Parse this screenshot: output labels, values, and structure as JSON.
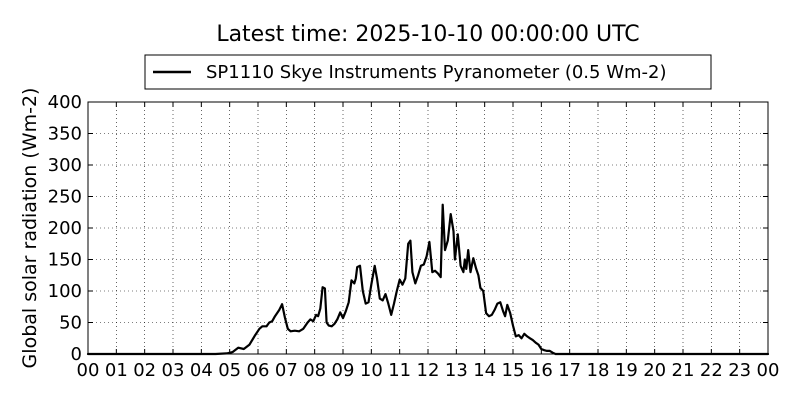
{
  "chart_data": {
    "type": "line",
    "title": "Latest time: 2025-10-10 00:00:00 UTC",
    "ylabel": "Global solar radiation (Wm-2)",
    "xlabel": "",
    "xlim": [
      0,
      24
    ],
    "ylim": [
      0,
      400
    ],
    "grid": true,
    "legend_position": "top-center",
    "x_tick_labels": [
      "00",
      "01",
      "02",
      "03",
      "04",
      "05",
      "06",
      "07",
      "08",
      "09",
      "10",
      "11",
      "12",
      "13",
      "14",
      "15",
      "16",
      "17",
      "18",
      "19",
      "20",
      "21",
      "22",
      "23",
      "00"
    ],
    "y_tick_labels": [
      "0",
      "50",
      "100",
      "150",
      "200",
      "250",
      "300",
      "350",
      "400"
    ],
    "y_ticks": [
      0,
      50,
      100,
      150,
      200,
      250,
      300,
      350,
      400
    ],
    "series": [
      {
        "name": "SP1110 Skye Instruments Pyranometer (0.5 Wm-2)",
        "color": "#000000",
        "x": [
          0,
          4.5,
          4.9,
          5.1,
          5.3,
          5.5,
          5.7,
          5.9,
          6.05,
          6.15,
          6.3,
          6.4,
          6.5,
          6.6,
          6.75,
          6.85,
          6.95,
          7.05,
          7.15,
          7.3,
          7.45,
          7.6,
          7.75,
          7.85,
          7.95,
          8.05,
          8.12,
          8.2,
          8.28,
          8.36,
          8.42,
          8.5,
          8.6,
          8.7,
          8.8,
          8.9,
          9.0,
          9.1,
          9.2,
          9.3,
          9.4,
          9.45,
          9.5,
          9.6,
          9.7,
          9.8,
          9.9,
          10.0,
          10.12,
          10.2,
          10.3,
          10.4,
          10.5,
          10.6,
          10.7,
          10.8,
          10.9,
          11.0,
          11.1,
          11.2,
          11.3,
          11.38,
          11.45,
          11.55,
          11.65,
          11.75,
          11.85,
          11.95,
          12.05,
          12.15,
          12.25,
          12.35,
          12.45,
          12.52,
          12.6,
          12.7,
          12.8,
          12.9,
          12.95,
          13.05,
          13.15,
          13.25,
          13.3,
          13.35,
          13.42,
          13.5,
          13.6,
          13.7,
          13.78,
          13.85,
          13.95,
          14.05,
          14.15,
          14.25,
          14.35,
          14.45,
          14.55,
          14.65,
          14.72,
          14.8,
          14.9,
          15.0,
          15.1,
          15.2,
          15.3,
          15.4,
          15.5,
          15.6,
          15.7,
          15.8,
          15.9,
          16.0,
          16.1,
          16.2,
          16.3,
          16.4,
          16.5,
          17.0,
          24.0
        ],
        "y": [
          0,
          0,
          1,
          3,
          10,
          8,
          15,
          30,
          40,
          44,
          44,
          50,
          52,
          60,
          70,
          79,
          58,
          40,
          36,
          37,
          36,
          40,
          50,
          55,
          52,
          62,
          60,
          72,
          106,
          104,
          50,
          45,
          44,
          48,
          55,
          66,
          57,
          68,
          82,
          117,
          112,
          120,
          138,
          140,
          100,
          80,
          82,
          110,
          140,
          120,
          88,
          85,
          95,
          80,
          62,
          80,
          100,
          118,
          110,
          120,
          175,
          180,
          130,
          112,
          125,
          140,
          142,
          155,
          178,
          130,
          132,
          128,
          122,
          237,
          165,
          180,
          222,
          195,
          150,
          190,
          140,
          130,
          150,
          135,
          165,
          130,
          152,
          135,
          125,
          105,
          100,
          65,
          60,
          62,
          70,
          80,
          82,
          68,
          60,
          78,
          65,
          45,
          28,
          30,
          25,
          32,
          28,
          25,
          22,
          18,
          15,
          8,
          6,
          5,
          5,
          2,
          0,
          0,
          0
        ]
      }
    ]
  }
}
